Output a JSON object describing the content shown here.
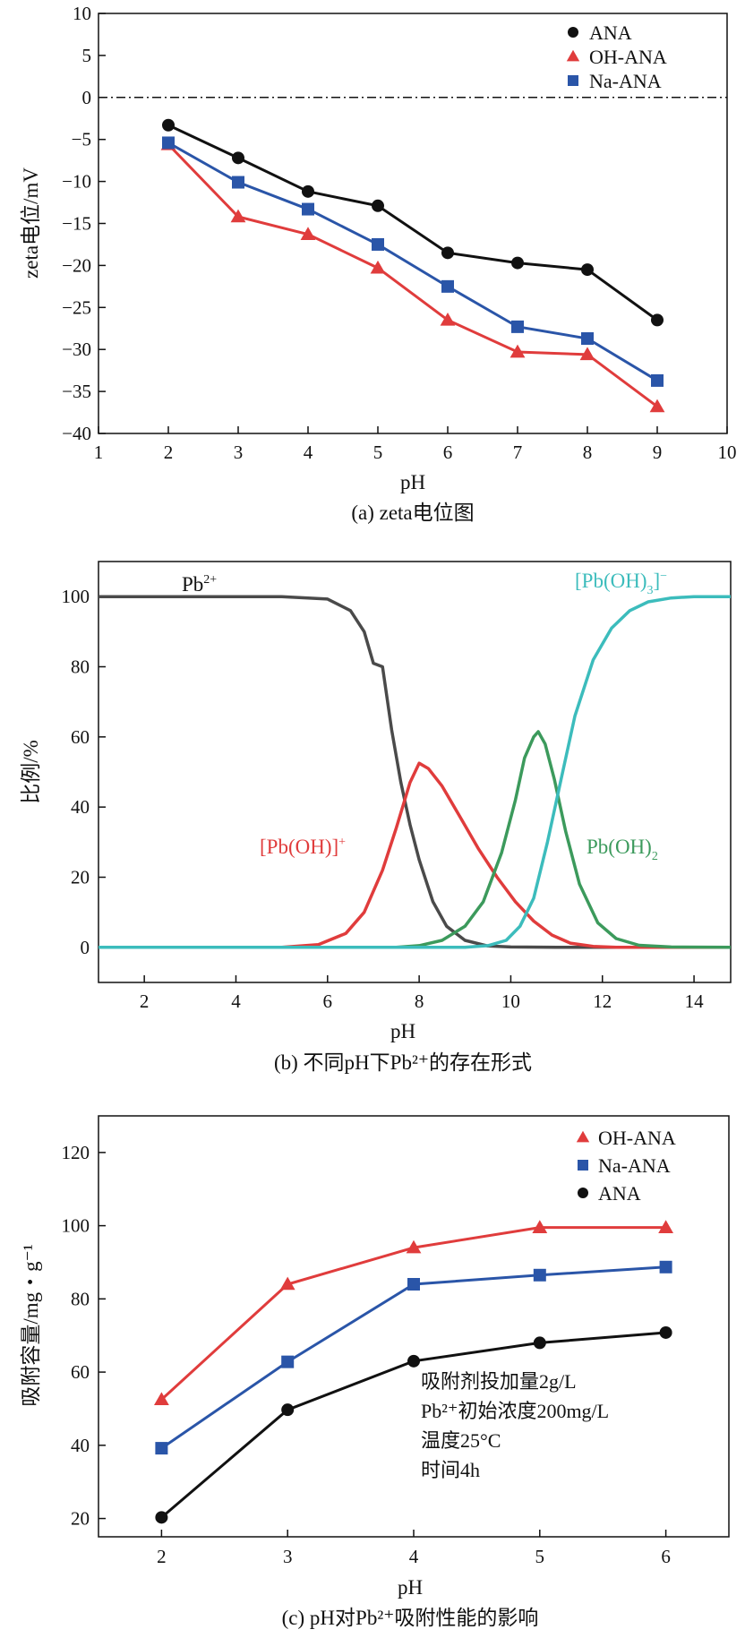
{
  "colors": {
    "black": "#111111",
    "red": "#e03c3c",
    "blue": "#2a55a8",
    "grey": "#4a4a4a",
    "green": "#3c9a5c",
    "cyan": "#3cbcbc"
  },
  "chart_data": [
    {
      "type": "line",
      "title": "",
      "caption": "(a) zeta电位图",
      "xlabel": "pH",
      "ylabel": "zeta电位/mV",
      "xlim": [
        1,
        10
      ],
      "ylim": [
        -40,
        10
      ],
      "xticks": [
        "1",
        "2",
        "3",
        "4",
        "5",
        "6",
        "7",
        "8",
        "9",
        "10"
      ],
      "yticks": [
        "10",
        "5",
        "0",
        "-5",
        "-10",
        "-15",
        "-20",
        "-25",
        "-30",
        "-35",
        "-40"
      ],
      "zero_line": "dash-dot at 0",
      "legend_position": "top-right",
      "x": [
        2,
        3,
        4,
        5,
        6,
        7,
        8,
        9
      ],
      "series": [
        {
          "name": "ANA",
          "marker": "circle",
          "color": "#111111",
          "values": [
            -3.3,
            -7.2,
            -11.2,
            -12.9,
            -18.5,
            -19.7,
            -20.5,
            -26.5
          ]
        },
        {
          "name": "OH-ANA",
          "marker": "triangle",
          "color": "#e03c3c",
          "values": [
            -5.6,
            -14.2,
            -16.3,
            -20.3,
            -26.5,
            -30.3,
            -30.6,
            -36.8
          ]
        },
        {
          "name": "Na-ANA",
          "marker": "square",
          "color": "#2a55a8",
          "values": [
            -5.4,
            -10.1,
            -13.3,
            -17.5,
            -22.5,
            -27.3,
            -28.7,
            -33.7
          ]
        }
      ]
    },
    {
      "type": "line",
      "caption": "(b) 不同pH下Pb²⁺的存在形式",
      "xlabel": "pH",
      "ylabel": "比例/%",
      "xlim": [
        1,
        14.8
      ],
      "ylim": [
        -10,
        110
      ],
      "xticks": [
        "2",
        "4",
        "6",
        "8",
        "10",
        "12",
        "14"
      ],
      "yticks": [
        "100",
        "80",
        "60",
        "40",
        "20",
        "0"
      ],
      "labels": {
        "pb": "Pb",
        "pb_sup": "2+",
        "pboh": "[Pb(OH)]",
        "pboh_sup": "+",
        "pboh2": "Pb(OH)",
        "pboh2_sub": "2",
        "pboh3": "[Pb(OH)",
        "pboh3_sub": "3",
        "pboh3_end": "]",
        "pboh3_sup": "−"
      },
      "series": [
        {
          "name": "Pb2+",
          "color": "#4a4a4a",
          "points": [
            [
              1,
              100
            ],
            [
              5,
              100
            ],
            [
              6,
              99.3
            ],
            [
              6.5,
              96
            ],
            [
              6.8,
              90
            ],
            [
              7.0,
              81
            ],
            [
              7.2,
              80
            ],
            [
              7.4,
              62
            ],
            [
              7.6,
              47
            ],
            [
              7.8,
              35
            ],
            [
              8.0,
              25
            ],
            [
              8.3,
              13
            ],
            [
              8.6,
              6
            ],
            [
              9.0,
              2
            ],
            [
              9.5,
              0.4
            ],
            [
              10,
              0.1
            ],
            [
              11,
              0
            ],
            [
              14.8,
              0
            ]
          ]
        },
        {
          "name": "[Pb(OH)]+",
          "color": "#e03c3c",
          "points": [
            [
              1,
              0
            ],
            [
              5,
              0
            ],
            [
              5.8,
              0.8
            ],
            [
              6.4,
              4
            ],
            [
              6.8,
              10
            ],
            [
              7.2,
              22
            ],
            [
              7.5,
              34
            ],
            [
              7.8,
              47
            ],
            [
              8.0,
              52.5
            ],
            [
              8.2,
              51
            ],
            [
              8.5,
              46
            ],
            [
              8.9,
              37
            ],
            [
              9.3,
              28
            ],
            [
              9.7,
              20
            ],
            [
              10.1,
              13
            ],
            [
              10.5,
              7.5
            ],
            [
              10.9,
              3.5
            ],
            [
              11.3,
              1.2
            ],
            [
              11.8,
              0.3
            ],
            [
              12.3,
              0
            ],
            [
              14.8,
              0
            ]
          ]
        },
        {
          "name": "Pb(OH)2",
          "color": "#3c9a5c",
          "points": [
            [
              1,
              0
            ],
            [
              7.5,
              0
            ],
            [
              8.0,
              0.5
            ],
            [
              8.5,
              2
            ],
            [
              9.0,
              6
            ],
            [
              9.4,
              13
            ],
            [
              9.8,
              27
            ],
            [
              10.1,
              42
            ],
            [
              10.3,
              54
            ],
            [
              10.5,
              60
            ],
            [
              10.6,
              61.5
            ],
            [
              10.75,
              58
            ],
            [
              10.95,
              48
            ],
            [
              11.2,
              33
            ],
            [
              11.5,
              18
            ],
            [
              11.9,
              7
            ],
            [
              12.3,
              2.5
            ],
            [
              12.8,
              0.6
            ],
            [
              13.5,
              0.1
            ],
            [
              14.8,
              0
            ]
          ]
        },
        {
          "name": "[Pb(OH)3]-",
          "color": "#3cbcbc",
          "points": [
            [
              1,
              0
            ],
            [
              9.0,
              0
            ],
            [
              9.5,
              0.5
            ],
            [
              9.9,
              2
            ],
            [
              10.2,
              6
            ],
            [
              10.5,
              14
            ],
            [
              10.8,
              30
            ],
            [
              11.1,
              48
            ],
            [
              11.4,
              66
            ],
            [
              11.8,
              82
            ],
            [
              12.2,
              91
            ],
            [
              12.6,
              96
            ],
            [
              13.0,
              98.5
            ],
            [
              13.5,
              99.6
            ],
            [
              14.0,
              100
            ],
            [
              14.8,
              100
            ]
          ]
        }
      ]
    },
    {
      "type": "line",
      "caption": "(c) pH对Pb²⁺吸附性能的影响",
      "xlabel": "pH",
      "ylabel": "吸附容量/mg・g⁻¹",
      "xlim": [
        1.5,
        6.5
      ],
      "ylim": [
        15,
        130
      ],
      "xticks": [
        "2",
        "3",
        "4",
        "5",
        "6"
      ],
      "yticks": [
        "120",
        "100",
        "80",
        "60",
        "40",
        "20"
      ],
      "legend_position": "top-right",
      "x": [
        2,
        3,
        4,
        5,
        6
      ],
      "series": [
        {
          "name": "OH-ANA",
          "marker": "triangle",
          "color": "#e03c3c",
          "values": [
            52.5,
            84,
            94,
            99.5,
            99.5
          ]
        },
        {
          "name": "Na-ANA",
          "marker": "square",
          "color": "#2a55a8",
          "values": [
            39.2,
            62.8,
            84,
            86.5,
            88.7
          ]
        },
        {
          "name": "ANA",
          "marker": "circle",
          "color": "#111111",
          "values": [
            20.3,
            49.7,
            63,
            68,
            70.8
          ]
        }
      ],
      "notes": [
        "吸附剂投加量2g/L",
        "Pb²⁺初始浓度200mg/L",
        "温度25°C",
        "时间4h"
      ]
    }
  ]
}
